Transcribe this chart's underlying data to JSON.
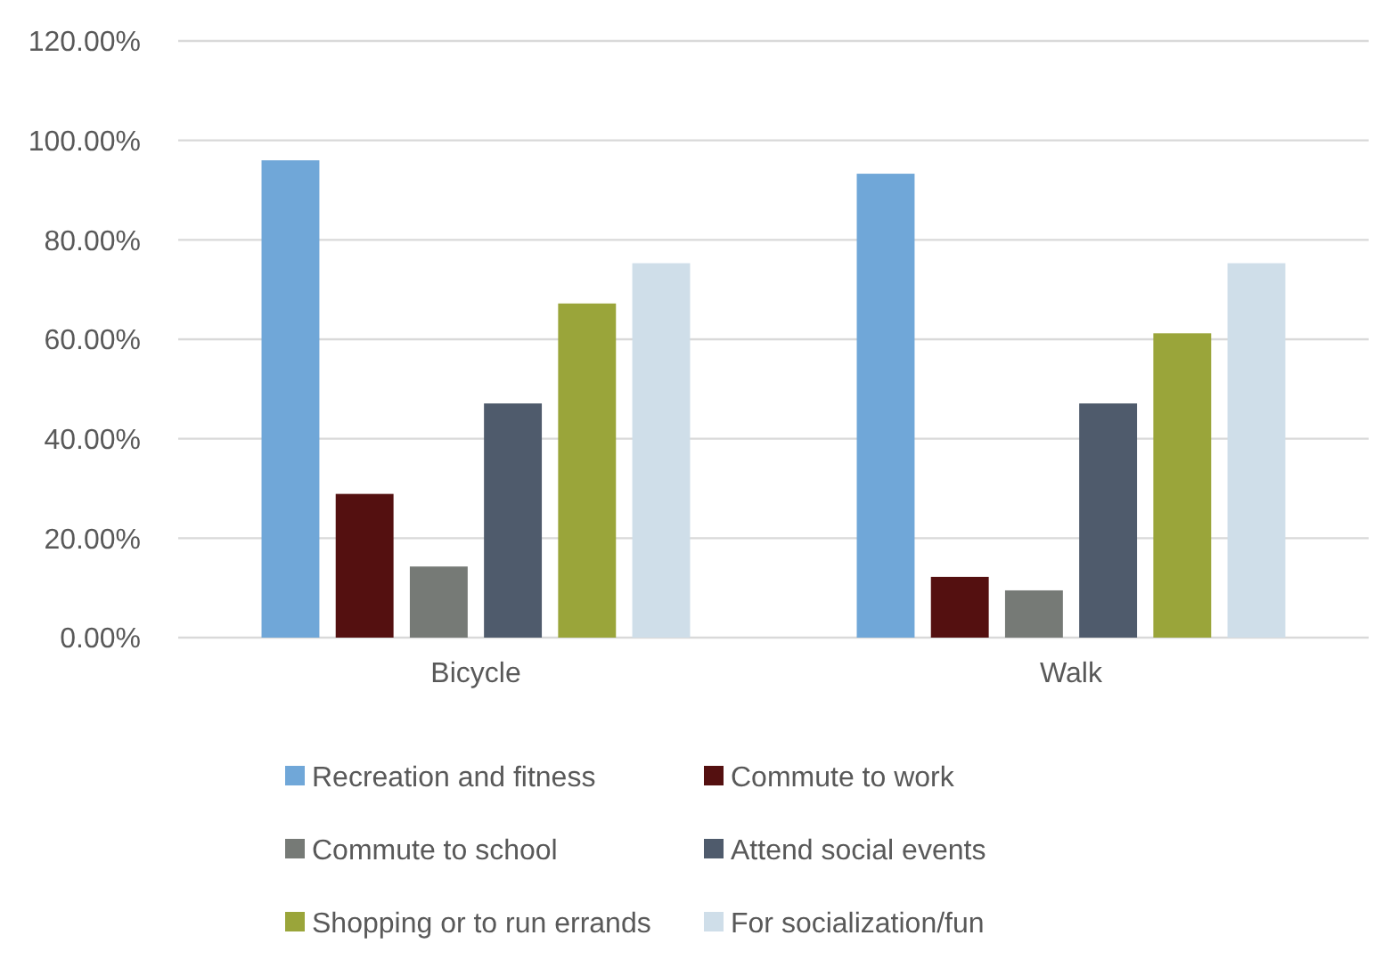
{
  "chart_data": {
    "type": "bar",
    "categories": [
      "Bicycle",
      "Walk"
    ],
    "series": [
      {
        "name": "Recreation and fitness",
        "color": "#70a7d8",
        "values": [
          96,
          93.3
        ]
      },
      {
        "name": "Commute to work",
        "color": "#541010",
        "values": [
          28.9,
          12.2
        ]
      },
      {
        "name": "Commute to school",
        "color": "#767a76",
        "values": [
          14.3,
          9.5
        ]
      },
      {
        "name": "Attend social events",
        "color": "#4f5b6c",
        "values": [
          47.1,
          47.1
        ]
      },
      {
        "name": "Shopping or to run errands",
        "color": "#9aa53a",
        "values": [
          67.2,
          61.2
        ]
      },
      {
        "name": "For socialization/fun",
        "color": "#cfdee9",
        "values": [
          75.3,
          75.3
        ]
      }
    ],
    "ylim": [
      0,
      120
    ],
    "yticks": [
      {
        "value": 0,
        "label": "0.00%"
      },
      {
        "value": 20,
        "label": "20.00%"
      },
      {
        "value": 40,
        "label": "40.00%"
      },
      {
        "value": 60,
        "label": "60.00%"
      },
      {
        "value": 80,
        "label": "80.00%"
      },
      {
        "value": 100,
        "label": "100.00%"
      },
      {
        "value": 120,
        "label": "120.00%"
      }
    ],
    "grid": "y",
    "legend": "bottom"
  }
}
